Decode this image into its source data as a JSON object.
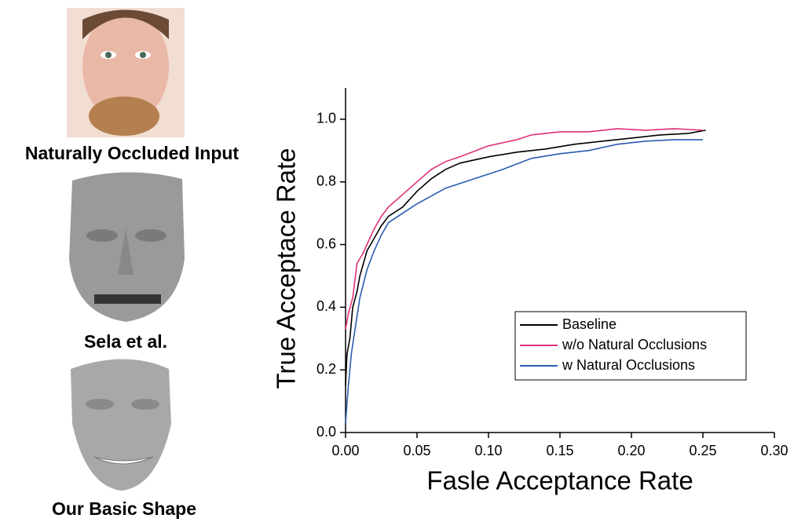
{
  "panels": {
    "captions": [
      "Naturally Occluded Input",
      "Sela et al.",
      "Our Basic Shape"
    ]
  },
  "chart_data": {
    "type": "line",
    "xlabel": "Fasle Acceptance Rate",
    "ylabel": "True Acceptace Rate",
    "xlim": [
      0,
      0.3
    ],
    "ylim": [
      0,
      1.1
    ],
    "xticks": [
      {
        "value": 0,
        "label": "0.00"
      },
      {
        "value": 0.05,
        "label": "0.05"
      },
      {
        "value": 0.1,
        "label": "0.10"
      },
      {
        "value": 0.15,
        "label": "0.15"
      },
      {
        "value": 0.2,
        "label": "0.20"
      },
      {
        "value": 0.25,
        "label": "0.25"
      },
      {
        "value": 0.3,
        "label": "0.30"
      }
    ],
    "yticks": [
      {
        "value": 0,
        "label": "0.0"
      },
      0.2,
      0.4,
      0.6,
      0.8,
      {
        "value": 1,
        "label": "1.0"
      }
    ],
    "legend": "lower right",
    "series": [
      {
        "name": "Baseline",
        "color": "#000000",
        "x": [
          0,
          0.001,
          0.003,
          0.005,
          0.008,
          0.01,
          0.015,
          0.02,
          0.025,
          0.03,
          0.04,
          0.05,
          0.06,
          0.07,
          0.08,
          0.1,
          0.12,
          0.14,
          0.16,
          0.18,
          0.2,
          0.22,
          0.24,
          0.252
        ],
        "values": [
          0.15,
          0.25,
          0.3,
          0.4,
          0.45,
          0.5,
          0.58,
          0.62,
          0.66,
          0.69,
          0.72,
          0.77,
          0.81,
          0.84,
          0.86,
          0.88,
          0.895,
          0.905,
          0.92,
          0.93,
          0.94,
          0.95,
          0.955,
          0.965
        ]
      },
      {
        "name": "w/o Natural Occlusions",
        "color": "#e0307a",
        "x": [
          0,
          0.002,
          0.005,
          0.008,
          0.012,
          0.015,
          0.02,
          0.025,
          0.03,
          0.04,
          0.05,
          0.06,
          0.07,
          0.08,
          0.1,
          0.12,
          0.13,
          0.15,
          0.17,
          0.19,
          0.21,
          0.23,
          0.25
        ],
        "values": [
          0.33,
          0.38,
          0.43,
          0.54,
          0.57,
          0.6,
          0.65,
          0.69,
          0.72,
          0.76,
          0.8,
          0.84,
          0.865,
          0.88,
          0.915,
          0.935,
          0.95,
          0.96,
          0.96,
          0.97,
          0.965,
          0.97,
          0.965
        ]
      },
      {
        "name": "w Natural Occlusions",
        "color": "#2a5db0",
        "x": [
          0,
          0.002,
          0.004,
          0.007,
          0.01,
          0.015,
          0.02,
          0.025,
          0.03,
          0.04,
          0.05,
          0.07,
          0.09,
          0.11,
          0.13,
          0.15,
          0.17,
          0.19,
          0.21,
          0.23,
          0.25
        ],
        "values": [
          0.03,
          0.15,
          0.25,
          0.34,
          0.43,
          0.52,
          0.58,
          0.63,
          0.67,
          0.7,
          0.73,
          0.78,
          0.81,
          0.84,
          0.875,
          0.89,
          0.9,
          0.92,
          0.93,
          0.935,
          0.935
        ]
      }
    ]
  }
}
